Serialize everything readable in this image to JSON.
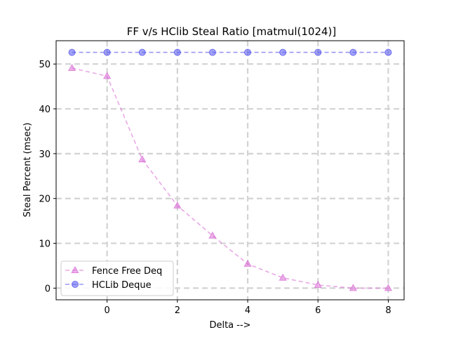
{
  "chart_data": {
    "type": "line",
    "title": "FF v/s HClib Steal Ratio [matmul(1024)]",
    "xlabel": "Delta -->",
    "ylabel": "Steal Percent (msec)",
    "xlim": [
      -1.45,
      8.45
    ],
    "ylim": [
      -2.6,
      55.2
    ],
    "xticks": [
      0,
      2,
      4,
      6,
      8
    ],
    "yticks": [
      0,
      10,
      20,
      30,
      40,
      50
    ],
    "grid": true,
    "legend_position": "lower-left",
    "x": [
      -1,
      0,
      1,
      2,
      3,
      4,
      5,
      6,
      7,
      8
    ],
    "series": [
      {
        "name": "Fence Free Deq",
        "marker": "triangle",
        "color": "#da70d6",
        "values": [
          49.1,
          47.3,
          28.7,
          18.4,
          11.7,
          5.4,
          2.3,
          0.7,
          0.0,
          0.0
        ]
      },
      {
        "name": "HCLib Deque",
        "marker": "circle",
        "color": "#5555ee",
        "values": [
          52.6,
          52.6,
          52.6,
          52.6,
          52.6,
          52.6,
          52.6,
          52.6,
          52.6,
          52.6
        ]
      }
    ]
  }
}
